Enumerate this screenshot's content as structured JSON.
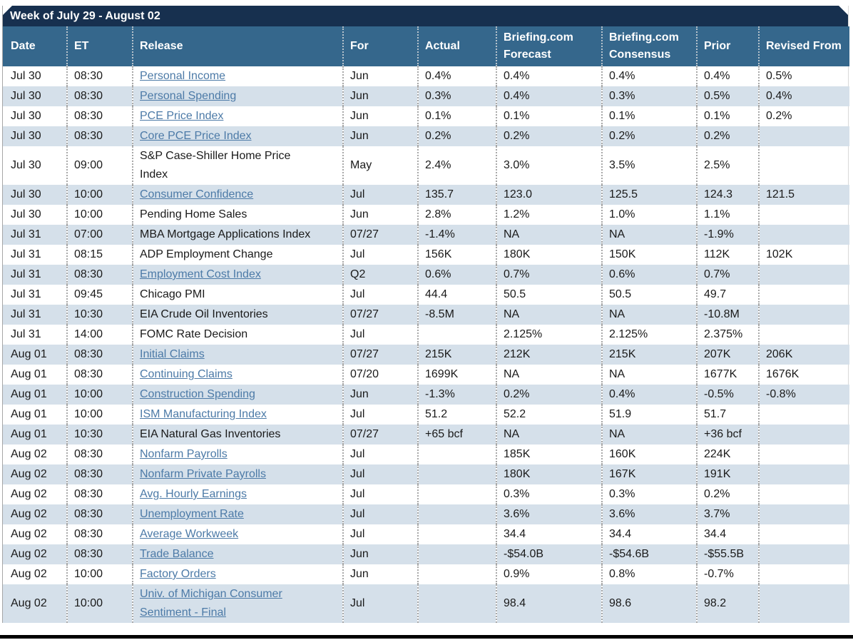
{
  "window": {
    "title_bar": "Week of July 29 - August 02"
  },
  "colors": {
    "title_bar_bg": "#17304f",
    "header_bg": "#35678c",
    "row_alt_bg": "#d5e0ea",
    "link": "#4c7aa7",
    "bottom_edge": "#000000"
  },
  "table": {
    "columns": [
      {
        "key": "date",
        "label": "Date"
      },
      {
        "key": "et",
        "label": "ET"
      },
      {
        "key": "release",
        "label": "Release"
      },
      {
        "key": "for",
        "label": "For"
      },
      {
        "key": "actual",
        "label": "Actual"
      },
      {
        "key": "forecast",
        "label": "Briefing.com Forecast"
      },
      {
        "key": "consensus",
        "label": "Briefing.com Consensus"
      },
      {
        "key": "prior",
        "label": "Prior"
      },
      {
        "key": "revised",
        "label": "Revised From"
      }
    ],
    "rows": [
      {
        "date": "Jul 30",
        "et": "08:30",
        "release": "Personal Income",
        "link": true,
        "for": "Jun",
        "actual": "0.4%",
        "forecast": "0.4%",
        "consensus": "0.4%",
        "prior": "0.4%",
        "revised": "0.5%"
      },
      {
        "date": "Jul 30",
        "et": "08:30",
        "release": "Personal Spending",
        "link": true,
        "for": "Jun",
        "actual": "0.3%",
        "forecast": "0.4%",
        "consensus": "0.3%",
        "prior": "0.5%",
        "revised": "0.4%"
      },
      {
        "date": "Jul 30",
        "et": "08:30",
        "release": "PCE Price Index",
        "link": true,
        "for": "Jun",
        "actual": "0.1%",
        "forecast": "0.1%",
        "consensus": "0.1%",
        "prior": "0.1%",
        "revised": "0.2%"
      },
      {
        "date": "Jul 30",
        "et": "08:30",
        "release": "Core PCE Price Index",
        "link": true,
        "for": "Jun",
        "actual": "0.2%",
        "forecast": "0.2%",
        "consensus": "0.2%",
        "prior": "0.2%",
        "revised": ""
      },
      {
        "date": "Jul 30",
        "et": "09:00",
        "release": "S&P Case-Shiller Home Price Index",
        "link": false,
        "for": "May",
        "actual": "2.4%",
        "forecast": "3.0%",
        "consensus": "3.5%",
        "prior": "2.5%",
        "revised": ""
      },
      {
        "date": "Jul 30",
        "et": "10:00",
        "release": "Consumer Confidence",
        "link": true,
        "for": "Jul",
        "actual": "135.7",
        "forecast": "123.0",
        "consensus": "125.5",
        "prior": "124.3",
        "revised": "121.5"
      },
      {
        "date": "Jul 30",
        "et": "10:00",
        "release": "Pending Home Sales",
        "link": false,
        "for": "Jun",
        "actual": "2.8%",
        "forecast": "1.2%",
        "consensus": "1.0%",
        "prior": "1.1%",
        "revised": ""
      },
      {
        "date": "Jul 31",
        "et": "07:00",
        "release": "MBA Mortgage Applications Index",
        "link": false,
        "for": "07/27",
        "actual": "-1.4%",
        "forecast": "NA",
        "consensus": "NA",
        "prior": "-1.9%",
        "revised": ""
      },
      {
        "date": "Jul 31",
        "et": "08:15",
        "release": "ADP Employment Change",
        "link": false,
        "for": "Jul",
        "actual": "156K",
        "forecast": "180K",
        "consensus": "150K",
        "prior": "112K",
        "revised": "102K"
      },
      {
        "date": "Jul 31",
        "et": "08:30",
        "release": "Employment Cost Index",
        "link": true,
        "for": "Q2",
        "actual": "0.6%",
        "forecast": "0.7%",
        "consensus": "0.6%",
        "prior": "0.7%",
        "revised": ""
      },
      {
        "date": "Jul 31",
        "et": "09:45",
        "release": "Chicago PMI",
        "link": false,
        "for": "Jul",
        "actual": "44.4",
        "forecast": "50.5",
        "consensus": "50.5",
        "prior": "49.7",
        "revised": ""
      },
      {
        "date": "Jul 31",
        "et": "10:30",
        "release": "EIA Crude Oil Inventories",
        "link": false,
        "for": "07/27",
        "actual": "-8.5M",
        "forecast": "NA",
        "consensus": "NA",
        "prior": "-10.8M",
        "revised": ""
      },
      {
        "date": "Jul 31",
        "et": "14:00",
        "release": "FOMC Rate Decision",
        "link": false,
        "for": "Jul",
        "actual": "",
        "forecast": "2.125%",
        "consensus": "2.125%",
        "prior": "2.375%",
        "revised": ""
      },
      {
        "date": "Aug 01",
        "et": "08:30",
        "release": "Initial Claims",
        "link": true,
        "for": "07/27",
        "actual": "215K",
        "forecast": "212K",
        "consensus": "215K",
        "prior": "207K",
        "revised": "206K"
      },
      {
        "date": "Aug 01",
        "et": "08:30",
        "release": "Continuing Claims",
        "link": true,
        "for": "07/20",
        "actual": "1699K",
        "forecast": "NA",
        "consensus": "NA",
        "prior": "1677K",
        "revised": "1676K"
      },
      {
        "date": "Aug 01",
        "et": "10:00",
        "release": "Construction Spending",
        "link": true,
        "for": "Jun",
        "actual": "-1.3%",
        "forecast": "0.2%",
        "consensus": "0.4%",
        "prior": "-0.5%",
        "revised": "-0.8%"
      },
      {
        "date": "Aug 01",
        "et": "10:00",
        "release": "ISM Manufacturing Index",
        "link": true,
        "for": "Jul",
        "actual": "51.2",
        "forecast": "52.2",
        "consensus": "51.9",
        "prior": "51.7",
        "revised": ""
      },
      {
        "date": "Aug 01",
        "et": "10:30",
        "release": "EIA Natural Gas Inventories",
        "link": false,
        "for": "07/27",
        "actual": "+65 bcf",
        "forecast": "NA",
        "consensus": "NA",
        "prior": "+36 bcf",
        "revised": ""
      },
      {
        "date": "Aug 02",
        "et": "08:30",
        "release": "Nonfarm Payrolls",
        "link": true,
        "for": "Jul",
        "actual": "",
        "forecast": "185K",
        "consensus": "160K",
        "prior": "224K",
        "revised": ""
      },
      {
        "date": "Aug 02",
        "et": "08:30",
        "release": "Nonfarm Private Payrolls",
        "link": true,
        "for": "Jul",
        "actual": "",
        "forecast": "180K",
        "consensus": "167K",
        "prior": "191K",
        "revised": ""
      },
      {
        "date": "Aug 02",
        "et": "08:30",
        "release": "Avg. Hourly Earnings",
        "link": true,
        "for": "Jul",
        "actual": "",
        "forecast": "0.3%",
        "consensus": "0.3%",
        "prior": "0.2%",
        "revised": ""
      },
      {
        "date": "Aug 02",
        "et": "08:30",
        "release": "Unemployment Rate",
        "link": true,
        "for": "Jul",
        "actual": "",
        "forecast": "3.6%",
        "consensus": "3.6%",
        "prior": "3.7%",
        "revised": ""
      },
      {
        "date": "Aug 02",
        "et": "08:30",
        "release": "Average Workweek",
        "link": true,
        "for": "Jul",
        "actual": "",
        "forecast": "34.4",
        "consensus": "34.4",
        "prior": "34.4",
        "revised": ""
      },
      {
        "date": "Aug 02",
        "et": "08:30",
        "release": "Trade Balance",
        "link": true,
        "for": "Jun",
        "actual": "",
        "forecast": "-$54.0B",
        "consensus": "-$54.6B",
        "prior": "-$55.5B",
        "revised": ""
      },
      {
        "date": "Aug 02",
        "et": "10:00",
        "release": "Factory Orders",
        "link": true,
        "for": "Jun",
        "actual": "",
        "forecast": "0.9%",
        "consensus": "0.8%",
        "prior": "-0.7%",
        "revised": ""
      },
      {
        "date": "Aug 02",
        "et": "10:00",
        "release": "Univ. of Michigan Consumer Sentiment - Final",
        "link": true,
        "for": "Jul",
        "actual": "",
        "forecast": "98.4",
        "consensus": "98.6",
        "prior": "98.2",
        "revised": ""
      }
    ]
  }
}
